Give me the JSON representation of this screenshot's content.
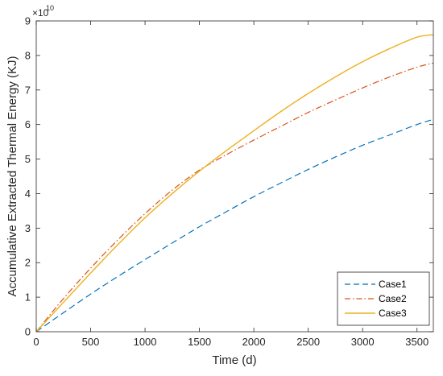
{
  "chart_data": {
    "type": "line",
    "title": "",
    "xlabel": "Time (d)",
    "ylabel": "Accumulative Extracted Thermal Energy (KJ)",
    "y_exponent_label": "×10",
    "y_exponent_power": "10",
    "xlim": [
      0,
      3650
    ],
    "ylim": [
      0,
      9
    ],
    "xticks": [
      0,
      500,
      1000,
      1500,
      2000,
      2500,
      3000,
      3500
    ],
    "yticks": [
      0,
      1,
      2,
      3,
      4,
      5,
      6,
      7,
      8,
      9
    ],
    "xtick_labels": [
      "0",
      "500",
      "1000",
      "1500",
      "2000",
      "2500",
      "3000",
      "3500"
    ],
    "ytick_labels": [
      "0",
      "1",
      "2",
      "3",
      "4",
      "5",
      "6",
      "7",
      "8",
      "9"
    ],
    "grid": false,
    "legend_position": "bottom-right",
    "x": [
      0,
      250,
      500,
      750,
      1000,
      1250,
      1500,
      1750,
      2000,
      2250,
      2500,
      2750,
      3000,
      3250,
      3500,
      3650
    ],
    "series": [
      {
        "name": "Case1",
        "color": "#0072BD",
        "style": "dashed",
        "values": [
          0,
          0.55,
          1.09,
          1.6,
          2.09,
          2.57,
          3.04,
          3.48,
          3.91,
          4.31,
          4.7,
          5.06,
          5.4,
          5.7,
          6.0,
          6.15
        ]
      },
      {
        "name": "Case2",
        "color": "#D95319",
        "style": "dashdot",
        "values": [
          0,
          0.96,
          1.84,
          2.66,
          3.42,
          4.1,
          4.68,
          5.13,
          5.55,
          5.95,
          6.35,
          6.71,
          7.06,
          7.38,
          7.66,
          7.78
        ]
      },
      {
        "name": "Case3",
        "color": "#EDB120",
        "style": "solid",
        "values": [
          0,
          0.85,
          1.7,
          2.52,
          3.3,
          4.0,
          4.65,
          5.25,
          5.82,
          6.38,
          6.9,
          7.38,
          7.82,
          8.2,
          8.53,
          8.6
        ]
      }
    ]
  }
}
